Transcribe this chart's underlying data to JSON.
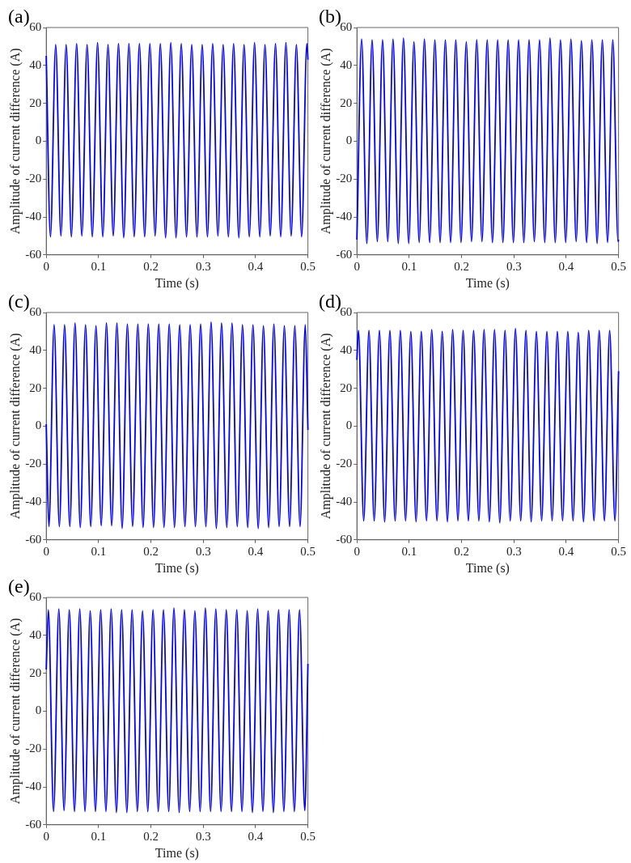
{
  "chart_data": [
    {
      "type": "line",
      "title": "(a)",
      "xlabel": "Time (s)",
      "ylabel": "Amplitude of current difference (A)",
      "xlim": [
        0,
        0.5
      ],
      "xticks": [
        0,
        0.1,
        0.2,
        0.3,
        0.4,
        0.5
      ],
      "ylim": [
        -60,
        60
      ],
      "yticks": [
        -60,
        -40,
        -20,
        0,
        20,
        40,
        60
      ],
      "grid": false,
      "legend": false,
      "marker": "none",
      "line_style": "solid",
      "series": [
        {
          "color": "#0000ff",
          "x": [
            0,
            0.008,
            0.018,
            0.028,
            0.038,
            0.048,
            0.058,
            0.068,
            0.078,
            0.088,
            0.098,
            0.108,
            0.118,
            0.128,
            0.138,
            0.148,
            0.158,
            0.168,
            0.178,
            0.188,
            0.198,
            0.208,
            0.218,
            0.228,
            0.238,
            0.248,
            0.258,
            0.268,
            0.278,
            0.288,
            0.298,
            0.308,
            0.318,
            0.328,
            0.338,
            0.348,
            0.358,
            0.368,
            0.378,
            0.388,
            0.398,
            0.408,
            0.418,
            0.428,
            0.438,
            0.448,
            0.458,
            0.468,
            0.478,
            0.488,
            0.498,
            0.5
          ],
          "values": [
            45,
            -50.5,
            51,
            -50,
            51,
            -50.5,
            51.5,
            -50,
            51,
            -50.5,
            52,
            -50.5,
            51,
            -50,
            51.5,
            -51,
            51.5,
            -50.5,
            51.5,
            -50.5,
            51.5,
            -50,
            51.5,
            -51,
            52,
            -51,
            51.5,
            -50.5,
            51,
            -50.5,
            51,
            -50.5,
            51.5,
            -50,
            51,
            -50.5,
            51.5,
            -51,
            51,
            -50.5,
            52,
            -50.5,
            51,
            -50,
            51.5,
            -50.5,
            52,
            -50,
            51,
            -50.5,
            51.5,
            43
          ]
        }
      ]
    },
    {
      "type": "line",
      "title": "(b)",
      "xlabel": "Time (s)",
      "ylabel": "Amplitude of current difference (A)",
      "xlim": [
        0,
        0.5
      ],
      "xticks": [
        0,
        0.1,
        0.2,
        0.3,
        0.4,
        0.5
      ],
      "ylim": [
        -60,
        60
      ],
      "yticks": [
        -60,
        -40,
        -20,
        0,
        20,
        40,
        60
      ],
      "grid": false,
      "legend": false,
      "marker": "none",
      "line_style": "solid",
      "series": [
        {
          "color": "#0000ff",
          "x": [
            0,
            0.009,
            0.019,
            0.029,
            0.039,
            0.049,
            0.059,
            0.069,
            0.079,
            0.089,
            0.099,
            0.109,
            0.119,
            0.129,
            0.139,
            0.149,
            0.159,
            0.169,
            0.179,
            0.189,
            0.199,
            0.209,
            0.219,
            0.229,
            0.239,
            0.249,
            0.259,
            0.269,
            0.279,
            0.289,
            0.299,
            0.309,
            0.319,
            0.329,
            0.339,
            0.349,
            0.359,
            0.369,
            0.379,
            0.389,
            0.399,
            0.409,
            0.419,
            0.429,
            0.439,
            0.449,
            0.459,
            0.469,
            0.479,
            0.489,
            0.499,
            0.5
          ],
          "values": [
            -52,
            54,
            -54,
            53.5,
            -53,
            53.5,
            -53,
            54,
            -54,
            54.5,
            -54,
            52.5,
            -53.5,
            54,
            -53.5,
            53.5,
            -53.5,
            53.5,
            -53.5,
            53.5,
            -53.5,
            52.5,
            -53,
            53.5,
            -53,
            53.5,
            -53.5,
            53.5,
            -53.5,
            53.5,
            -53.5,
            53.5,
            -53.5,
            53.5,
            -53,
            53.5,
            -53.5,
            54.5,
            -53.5,
            53.5,
            -53.5,
            54,
            -53,
            53,
            -53.5,
            53.5,
            -54,
            53.5,
            -53.5,
            53.5,
            -53,
            -52
          ]
        }
      ]
    },
    {
      "type": "line",
      "title": "(c)",
      "xlabel": "Time (s)",
      "ylabel": "Amplitude of current difference (A)",
      "xlim": [
        0,
        0.5
      ],
      "xticks": [
        0,
        0.1,
        0.2,
        0.3,
        0.4,
        0.5
      ],
      "ylim": [
        -60,
        60
      ],
      "yticks": [
        -60,
        -40,
        -20,
        0,
        20,
        40,
        60
      ],
      "grid": false,
      "legend": false,
      "marker": "none",
      "line_style": "solid",
      "series": [
        {
          "color": "#0000ff",
          "x": [
            0,
            0.005,
            0.015,
            0.025,
            0.035,
            0.045,
            0.055,
            0.065,
            0.075,
            0.085,
            0.095,
            0.105,
            0.115,
            0.125,
            0.135,
            0.145,
            0.155,
            0.165,
            0.175,
            0.185,
            0.195,
            0.205,
            0.215,
            0.225,
            0.235,
            0.245,
            0.255,
            0.265,
            0.275,
            0.285,
            0.295,
            0.305,
            0.315,
            0.325,
            0.335,
            0.345,
            0.355,
            0.365,
            0.375,
            0.385,
            0.395,
            0.405,
            0.415,
            0.425,
            0.435,
            0.445,
            0.455,
            0.465,
            0.475,
            0.485,
            0.495,
            0.5
          ],
          "values": [
            1,
            -53,
            53.5,
            -53,
            53.5,
            -53,
            54.5,
            -53.5,
            53.5,
            -53,
            53,
            -52.5,
            54.5,
            -52.5,
            54.5,
            -54,
            54,
            -53,
            54,
            -53.5,
            54,
            -53.5,
            54,
            -53.5,
            54,
            -53.5,
            53.5,
            -53,
            53.5,
            -53,
            54,
            -53,
            55,
            -54,
            54.5,
            -53.5,
            54.5,
            -53,
            53.5,
            -53.5,
            53.5,
            -54,
            53,
            -53.5,
            54,
            -53,
            53,
            -53,
            53,
            -53,
            53.5,
            -2
          ]
        }
      ]
    },
    {
      "type": "line",
      "title": "(d)",
      "xlabel": "Time (s)",
      "ylabel": "Amplitude of current difference (A)",
      "xlim": [
        0,
        0.5
      ],
      "xticks": [
        0,
        0.1,
        0.2,
        0.3,
        0.4,
        0.5
      ],
      "ylim": [
        -60,
        60
      ],
      "yticks": [
        -60,
        -40,
        -20,
        0,
        20,
        40,
        60
      ],
      "grid": false,
      "legend": false,
      "marker": "none",
      "line_style": "solid",
      "series": [
        {
          "color": "#0000ff",
          "x": [
            0,
            0.003,
            0.013,
            0.023,
            0.033,
            0.043,
            0.053,
            0.063,
            0.073,
            0.083,
            0.093,
            0.103,
            0.113,
            0.123,
            0.133,
            0.143,
            0.153,
            0.163,
            0.173,
            0.183,
            0.193,
            0.203,
            0.213,
            0.223,
            0.233,
            0.243,
            0.253,
            0.263,
            0.273,
            0.283,
            0.293,
            0.303,
            0.313,
            0.323,
            0.333,
            0.343,
            0.353,
            0.363,
            0.373,
            0.383,
            0.393,
            0.403,
            0.413,
            0.423,
            0.433,
            0.443,
            0.453,
            0.463,
            0.473,
            0.483,
            0.493,
            0.5
          ],
          "values": [
            35,
            50.5,
            -50,
            50.5,
            -50,
            50.5,
            -50.5,
            50.5,
            -50,
            50.5,
            -50,
            50,
            -50.5,
            50,
            -50,
            51,
            -50,
            50,
            -50.5,
            51,
            -50,
            50.5,
            -50,
            50.5,
            -50,
            51,
            -50.5,
            51,
            -51,
            50.5,
            -50,
            51.5,
            -50,
            50.5,
            -50.5,
            50,
            -50,
            50,
            -50,
            50,
            -50,
            50,
            -50,
            49.5,
            -50.5,
            50.5,
            -50,
            50.5,
            -50,
            50.5,
            -50,
            29
          ]
        }
      ]
    },
    {
      "type": "line",
      "title": "(e)",
      "xlabel": "Time (s)",
      "ylabel": "Amplitude of current difference (A)",
      "xlim": [
        0,
        0.5
      ],
      "xticks": [
        0,
        0.1,
        0.2,
        0.3,
        0.4,
        0.5
      ],
      "ylim": [
        -60,
        60
      ],
      "yticks": [
        -60,
        -40,
        -20,
        0,
        20,
        40,
        60
      ],
      "grid": false,
      "legend": false,
      "marker": "none",
      "line_style": "solid",
      "series": [
        {
          "color": "#0000ff",
          "x": [
            0,
            0.004,
            0.014,
            0.024,
            0.034,
            0.044,
            0.054,
            0.064,
            0.074,
            0.084,
            0.094,
            0.104,
            0.114,
            0.124,
            0.134,
            0.144,
            0.154,
            0.164,
            0.174,
            0.184,
            0.194,
            0.204,
            0.214,
            0.224,
            0.234,
            0.244,
            0.254,
            0.264,
            0.274,
            0.284,
            0.294,
            0.304,
            0.314,
            0.324,
            0.334,
            0.344,
            0.354,
            0.364,
            0.374,
            0.384,
            0.394,
            0.404,
            0.414,
            0.424,
            0.434,
            0.444,
            0.454,
            0.464,
            0.474,
            0.484,
            0.494,
            0.5
          ],
          "values": [
            22,
            53.5,
            -53,
            54,
            -52.5,
            53.5,
            -53,
            54,
            -53,
            53,
            -53,
            53.5,
            -53,
            54,
            -53.5,
            53.5,
            -53.5,
            53.5,
            -53,
            53,
            -53,
            53.5,
            -53,
            53.5,
            -53,
            54.5,
            -53.5,
            53.5,
            -53,
            53,
            -53,
            54.5,
            -53,
            54,
            -53,
            53.5,
            -53,
            53.5,
            -53,
            53,
            -53.5,
            54,
            -53,
            53,
            -53.5,
            53.5,
            -53,
            53.5,
            -53,
            53.5,
            -52.5,
            25
          ]
        }
      ]
    }
  ]
}
